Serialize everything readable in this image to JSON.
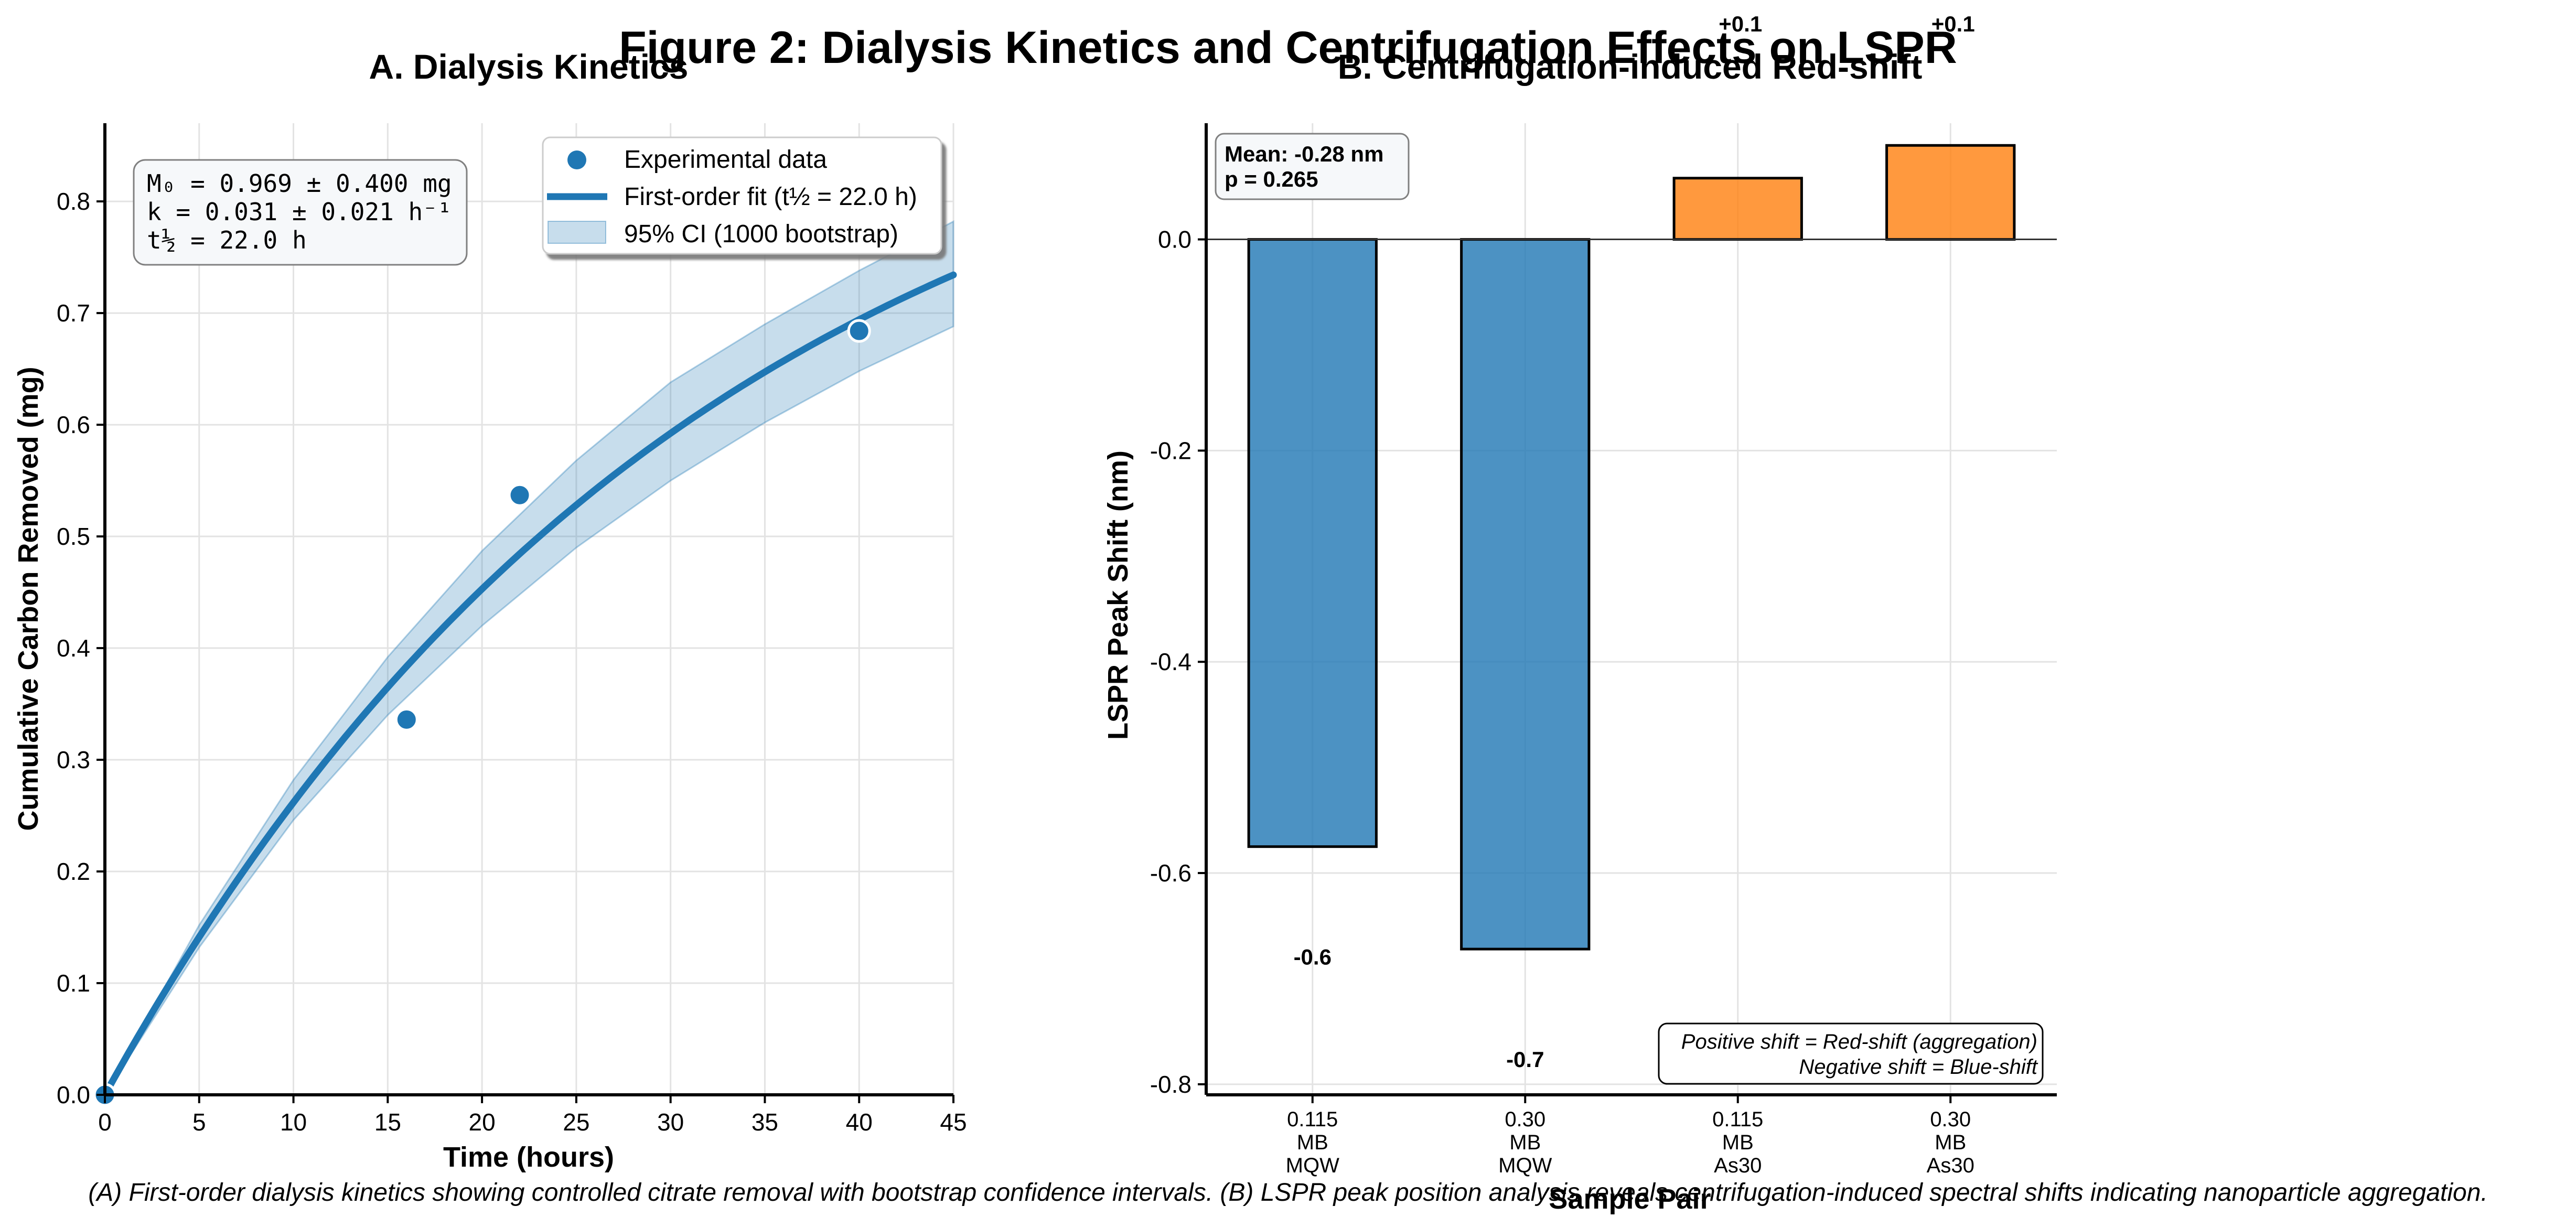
{
  "figure": {
    "suptitle": "Figure 2: Dialysis Kinetics and Centrifugation Effects on LSPR",
    "caption": "(A) First-order dialysis kinetics showing controlled citrate removal with bootstrap confidence intervals. (B) LSPR peak position analysis reveals centrifugation-induced spectral shifts indicating nanoparticle aggregation."
  },
  "chart_data": [
    {
      "panel": "A",
      "type": "scatter",
      "title": "A. Dialysis Kinetics",
      "xlabel": "Time (hours)",
      "ylabel": "Cumulative Carbon Removed (mg)",
      "xlim": [
        0,
        45
      ],
      "ylim": [
        0,
        0.87
      ],
      "xticks": [
        0,
        5,
        10,
        15,
        20,
        25,
        30,
        35,
        40,
        45
      ],
      "yticks": [
        0.0,
        0.1,
        0.2,
        0.3,
        0.4,
        0.5,
        0.6,
        0.7,
        0.8
      ],
      "grid": true,
      "legend_position": "upper right",
      "series": [
        {
          "name": "Experimental data",
          "kind": "points",
          "color": "#1f77b4",
          "x": [
            0,
            16,
            22,
            40
          ],
          "y": [
            0.0,
            0.336,
            0.537,
            0.684
          ]
        },
        {
          "name": "First-order fit (t½ = 22.0 h)",
          "kind": "line",
          "color": "#1f77b4",
          "model": "M0*(1-exp(-k*t))",
          "M0": 0.969,
          "k": 0.0315
        },
        {
          "name": "95% CI (1000 bootstrap)",
          "kind": "band",
          "color": "#1f77b4",
          "x": [
            0,
            5,
            10,
            15,
            20,
            25,
            30,
            35,
            40,
            45
          ],
          "lower": [
            0.0,
            0.132,
            0.246,
            0.34,
            0.42,
            0.49,
            0.55,
            0.602,
            0.648,
            0.688
          ],
          "upper": [
            0.0,
            0.152,
            0.282,
            0.392,
            0.487,
            0.568,
            0.638,
            0.69,
            0.738,
            0.782
          ]
        }
      ],
      "annotation": [
        "M₀ = 0.969 ± 0.400 mg",
        "k = 0.031 ± 0.021 h⁻¹",
        "t½ = 22.0 h"
      ]
    },
    {
      "panel": "B",
      "type": "bar",
      "title": "B. Centrifugation-induced Red-shift",
      "xlabel": "Sample Pair",
      "ylabel": "LSPR Peak Shift (nm)",
      "ylim": [
        -0.81,
        0.11
      ],
      "yticks": [
        0.0,
        -0.2,
        -0.4,
        -0.6,
        -0.8
      ],
      "grid": true,
      "categories": [
        "0.115\nMB\nMQW",
        "0.30\nMB\nMQW",
        "0.115\nMB\nAs30",
        "0.30\nMB\nAs30"
      ],
      "values": [
        -0.575,
        -0.672,
        0.058,
        0.089
      ],
      "value_labels": [
        "-0.6",
        "-0.7",
        "+0.1",
        "+0.1"
      ],
      "colors": {
        "negative": "#1f77b4",
        "positive": "#ff7f0e"
      },
      "stats": [
        "Mean: -0.28 nm",
        "p = 0.265"
      ],
      "note": [
        "Positive shift = Red-shift (aggregation)",
        "Negative shift = Blue-shift"
      ]
    }
  ]
}
